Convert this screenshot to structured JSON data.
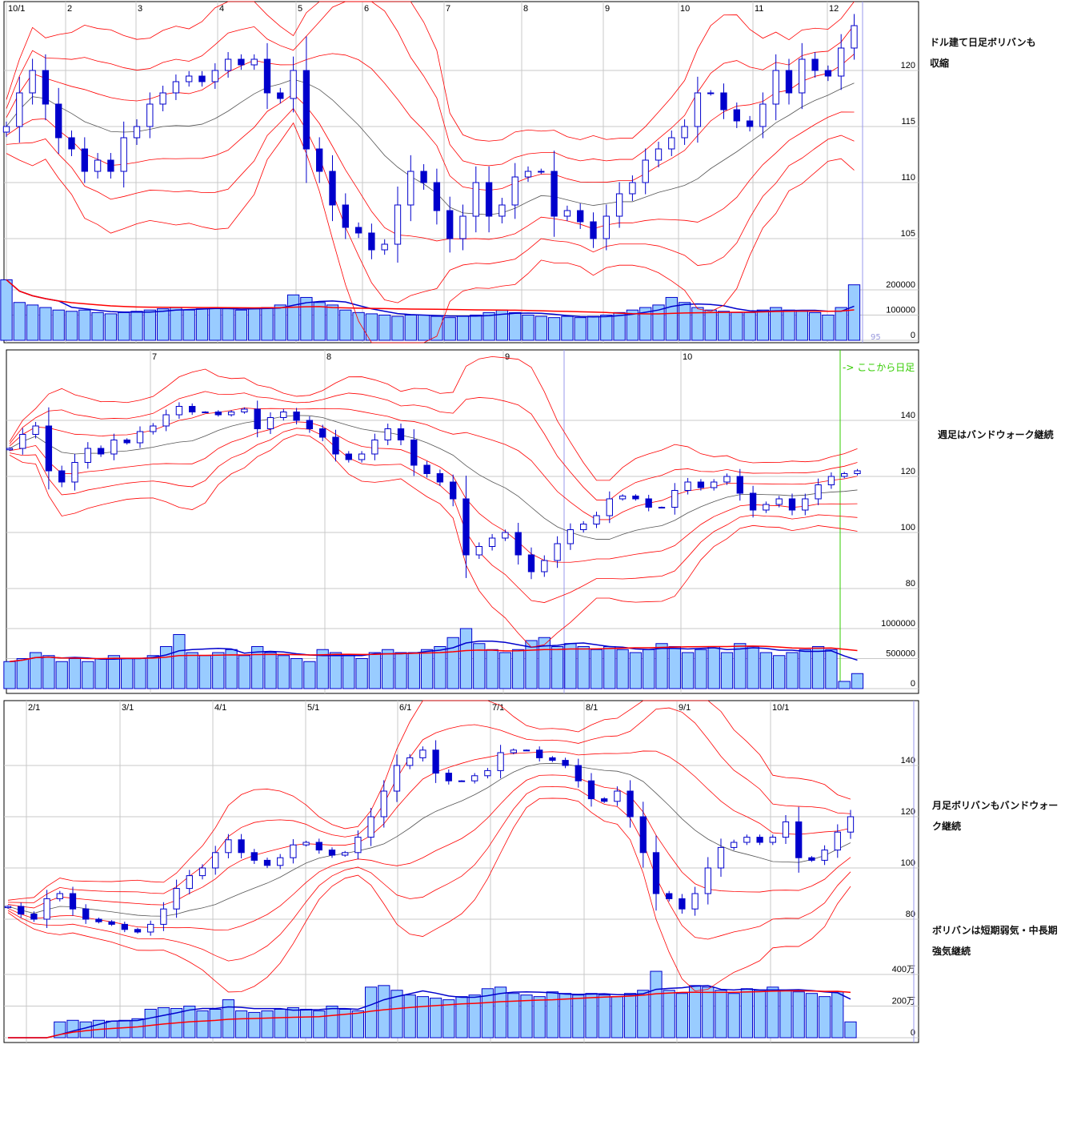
{
  "annotations": {
    "daily": [
      "ドル建て日足ボリバンも",
      "収縮"
    ],
    "weekly": [
      "週足はバンドウォーク継続"
    ],
    "monthly": [
      "月足ボリバンもバンドウォー",
      "ク継続"
    ],
    "bollinger": [
      "ボリバンは短期弱気・中長期",
      "強気継続"
    ]
  },
  "colors": {
    "up": "#ffffff",
    "down": "#0000cc",
    "candle_border": "#0000cc",
    "band": "#ff0000",
    "mid": "#555555",
    "volume_fill": "#99ccff",
    "volume_border": "#0000cc",
    "daily_marker": "#33cc00"
  },
  "chart_data": [
    {
      "type": "candlestick",
      "period": "daily",
      "x_tick_labels": [
        "10/1",
        "2",
        "3",
        "4",
        "5",
        "6",
        "7",
        "8",
        "9",
        "10",
        "11",
        "12"
      ],
      "price_ticks": [
        "120",
        "115",
        "110",
        "105"
      ],
      "volume_ticks": [
        "200000",
        "100000",
        "0"
      ],
      "extra_label": "95",
      "close": [
        115,
        118,
        120,
        117,
        114,
        113,
        111,
        112,
        111,
        114,
        115,
        117,
        118,
        119,
        119.5,
        119,
        120,
        121,
        120.5,
        121,
        118,
        117.5,
        120,
        113,
        111,
        108,
        106,
        105.5,
        104,
        104.5,
        108,
        111,
        110,
        107.5,
        105,
        107,
        110,
        107,
        108,
        110.5,
        111,
        111,
        107,
        107.5,
        106.5,
        105,
        107,
        109,
        110,
        112,
        113,
        114,
        115,
        118,
        118,
        116.5,
        115.5,
        115,
        117,
        120,
        118,
        121,
        120,
        119.5,
        122,
        124
      ],
      "volume": [
        240000,
        150000,
        140000,
        130000,
        120000,
        115000,
        120000,
        110000,
        105000,
        110000,
        115000,
        120000,
        125000,
        130000,
        120000,
        125000,
        130000,
        125000,
        120000,
        125000,
        130000,
        140000,
        180000,
        170000,
        150000,
        140000,
        120000,
        110000,
        105000,
        100000,
        95000,
        100000,
        100000,
        95000,
        90000,
        95000,
        100000,
        110000,
        120000,
        110000,
        100000,
        95000,
        90000,
        95000,
        90000,
        95000,
        100000,
        110000,
        120000,
        130000,
        140000,
        170000,
        150000,
        130000,
        120000,
        115000,
        110000,
        110000,
        120000,
        130000,
        120000,
        115000,
        110000,
        100000,
        130000,
        220000
      ]
    },
    {
      "type": "candlestick",
      "period": "weekly",
      "x_tick_labels": [
        "7",
        "8",
        "9",
        "10"
      ],
      "price_ticks": [
        "140",
        "120",
        "100",
        "80"
      ],
      "volume_ticks": [
        "1000000",
        "500000",
        "0"
      ],
      "marker_label": "-> ここから日足",
      "close": [
        130,
        135,
        138,
        122,
        118,
        125,
        130,
        128,
        133,
        132,
        136,
        138,
        142,
        145,
        143,
        143,
        142,
        143,
        144,
        137,
        141,
        143,
        140,
        137,
        134,
        128,
        126,
        128,
        133,
        137,
        133,
        124,
        121,
        118,
        112,
        92,
        95,
        98,
        100,
        92,
        86,
        90,
        96,
        101,
        103,
        106,
        112,
        113,
        112,
        109,
        109,
        115,
        118,
        116,
        118,
        120,
        114,
        108,
        110,
        112,
        108,
        112,
        117,
        120,
        121,
        122
      ],
      "volume": [
        450000,
        500000,
        600000,
        550000,
        450000,
        500000,
        450000,
        500000,
        550000,
        500000,
        500000,
        550000,
        700000,
        900000,
        600000,
        550000,
        600000,
        650000,
        550000,
        700000,
        600000,
        550000,
        500000,
        450000,
        650000,
        600000,
        550000,
        500000,
        600000,
        650000,
        600000,
        600000,
        650000,
        700000,
        850000,
        1000000,
        750000,
        650000,
        600000,
        650000,
        800000,
        850000,
        700000,
        750000,
        700000,
        650000,
        700000,
        650000,
        600000,
        650000,
        750000,
        700000,
        600000,
        650000,
        700000,
        600000,
        750000,
        700000,
        600000,
        550000,
        600000,
        650000,
        700000,
        650000,
        120000,
        250000
      ]
    },
    {
      "type": "candlestick",
      "period": "monthly",
      "x_tick_labels": [
        "2/1",
        "3/1",
        "4/1",
        "5/1",
        "6/1",
        "7/1",
        "8/1",
        "9/1",
        "10/1"
      ],
      "price_ticks": [
        "140",
        "120",
        "100",
        "80"
      ],
      "volume_ticks": [
        "400万",
        "200万",
        "0"
      ],
      "volume_unit": "万",
      "close": [
        85,
        82,
        80,
        88,
        90,
        84,
        80,
        79,
        78,
        76,
        75,
        78,
        84,
        92,
        97,
        100,
        106,
        111,
        106,
        103,
        101,
        104,
        109,
        110,
        107,
        105,
        106,
        112,
        120,
        130,
        140,
        143,
        146,
        137,
        134,
        134,
        136,
        138,
        145,
        146,
        146,
        143,
        142,
        140,
        134,
        127,
        126,
        130,
        120,
        106,
        90,
        88,
        84,
        90,
        100,
        108,
        110,
        112,
        110,
        112,
        118,
        104,
        103,
        107,
        114,
        120
      ],
      "volume": [
        0,
        0,
        0,
        0,
        100,
        110,
        100,
        110,
        105,
        110,
        120,
        180,
        190,
        185,
        200,
        170,
        180,
        240,
        170,
        160,
        170,
        180,
        190,
        180,
        170,
        200,
        180,
        170,
        320,
        330,
        300,
        270,
        260,
        250,
        240,
        260,
        270,
        310,
        320,
        280,
        270,
        260,
        290,
        280,
        270,
        280,
        270,
        260,
        280,
        300,
        420,
        300,
        280,
        330,
        320,
        300,
        280,
        310,
        300,
        320,
        300,
        290,
        280,
        260,
        290,
        100
      ]
    }
  ]
}
